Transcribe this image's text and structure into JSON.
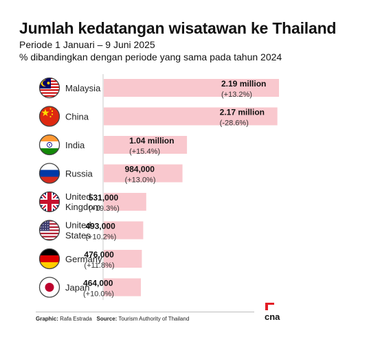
{
  "header": {
    "title": "Jumlah kedatangan wisatawan ke Thailand",
    "subtitle_1": "Periode 1 Januari – 9 Juni 2025",
    "subtitle_2": "% dibandingkan dengan periode yang sama pada tahun 2024"
  },
  "chart_data": {
    "type": "bar",
    "orientation": "horizontal",
    "categories": [
      "Malaysia",
      "China",
      "India",
      "Russia",
      "United Kingdom",
      "United States",
      "Germany",
      "Japan"
    ],
    "values": [
      2190000,
      2170000,
      1040000,
      984000,
      531000,
      493000,
      476000,
      464000
    ],
    "value_labels": [
      "2.19 million",
      "2.17 million",
      "1.04 million",
      "984,000",
      "531,000",
      "493,000",
      "476,000",
      "464,000"
    ],
    "change_labels": [
      "(+13.2%)",
      "(-28.6%)",
      "(+15.4%)",
      "(+13.0%)",
      "(+19.3%)",
      "(+10.2%)",
      "(+11.8%)",
      "(+10.0%)"
    ],
    "bar_color": "#f9c8ce",
    "grid": false,
    "legend": "none"
  },
  "flags": [
    "malaysia-flag-icon",
    "china-flag-icon",
    "india-flag-icon",
    "russia-flag-icon",
    "united-kingdom-flag-icon",
    "united-states-flag-icon",
    "germany-flag-icon",
    "japan-flag-icon"
  ],
  "footer": {
    "graphic_label": "Graphic:",
    "graphic_value": "Rafa Estrada",
    "source_label": "Source:",
    "source_value": "Tourism Authority of Thailand"
  },
  "brand": {
    "logo_text": "cna",
    "logo_color": "#e31d25"
  }
}
